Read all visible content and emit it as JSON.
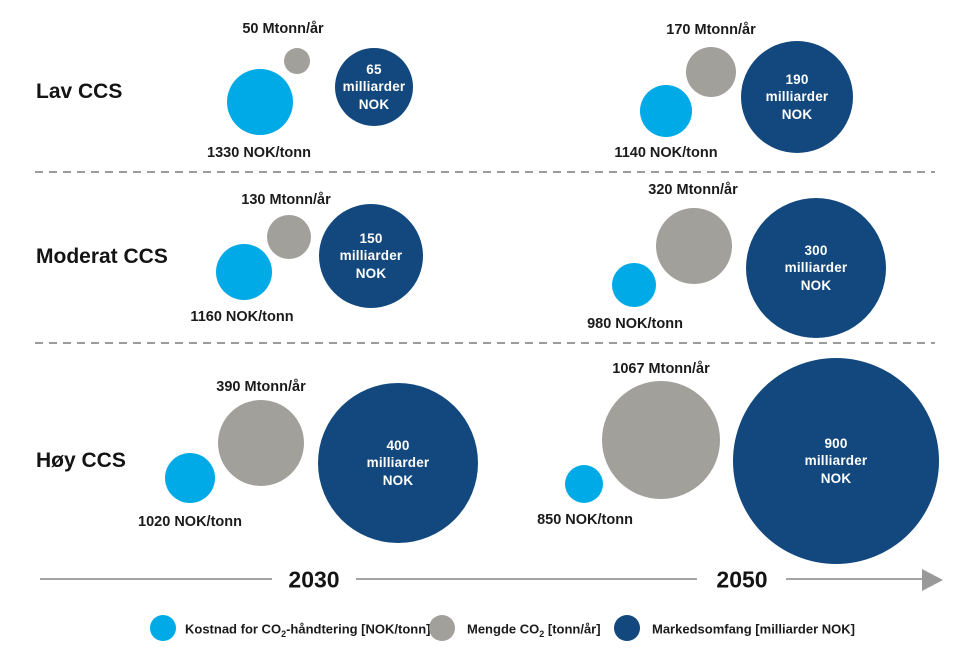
{
  "rows": [
    {
      "label": "Lav CCS"
    },
    {
      "label": "Moderat CCS"
    },
    {
      "label": "Høy CCS"
    }
  ],
  "groups": [
    {
      "scenario": "Lav CCS",
      "year": "2030",
      "amount": "50 Mtonn/år",
      "market": "65\nmilliarder\nNOK",
      "cost": "1330 NOK/tonn"
    },
    {
      "scenario": "Lav CCS",
      "year": "2050",
      "amount": "170 Mtonn/år",
      "market": "190\nmilliarder\nNOK",
      "cost": "1140 NOK/tonn"
    },
    {
      "scenario": "Moderat CCS",
      "year": "2030",
      "amount": "130 Mtonn/år",
      "market": "150\nmilliarder\nNOK",
      "cost": "1160 NOK/tonn"
    },
    {
      "scenario": "Moderat CCS",
      "year": "2050",
      "amount": "320 Mtonn/år",
      "market": "300\nmilliarder\nNOK",
      "cost": "980 NOK/tonn"
    },
    {
      "scenario": "Høy CCS",
      "year": "2030",
      "amount": "390 Mtonn/år",
      "market": "400\nmilliarder\nNOK",
      "cost": "1020 NOK/tonn"
    },
    {
      "scenario": "Høy CCS",
      "year": "2050",
      "amount": "1067 Mtonn/år",
      "market": "900\nmilliarder\nNOK",
      "cost": "850 NOK/tonn"
    }
  ],
  "timeline": {
    "left_year": "2030",
    "right_year": "2050"
  },
  "legend": [
    {
      "pre": "Kostnad for CO",
      "sub": "2",
      "post": "-håndtering [NOK/tonn]",
      "color": "#00aae6"
    },
    {
      "pre": "Mengde CO",
      "sub": "2",
      "post": " [tonn/år]",
      "color": "#a1a09b"
    },
    {
      "pre": "Markedsomfang [milliarder NOK]",
      "sub": "",
      "post": "",
      "color": "#12487d"
    }
  ],
  "colors": {
    "cost_bubble": "#00aae6",
    "amount_bubble": "#a1a09b",
    "market_bubble": "#12487d",
    "text": "#1b1b1b",
    "timeline": "#a5a5a5",
    "dashed_separator": "#9c9c9c"
  },
  "chart_data": {
    "type": "bubble",
    "title": "",
    "scenarios": [
      "Lav CCS",
      "Moderat CCS",
      "Høy CCS"
    ],
    "years": [
      2030,
      2050
    ],
    "series_meta": [
      {
        "name": "Kostnad for CO2-håndtering [NOK/tonn]",
        "color": "#00aae6"
      },
      {
        "name": "Mengde CO2 [tonn/år]",
        "color": "#a1a09b",
        "unit_shown": "Mtonn/år"
      },
      {
        "name": "Markedsomfang [milliarder NOK]",
        "color": "#12487d"
      }
    ],
    "records": [
      {
        "scenario": "Lav CCS",
        "year": 2030,
        "kostnad_nok_per_tonn": 1330,
        "mengde_mtonn_per_aar": 50,
        "markedsomfang_mrd_nok": 65
      },
      {
        "scenario": "Lav CCS",
        "year": 2050,
        "kostnad_nok_per_tonn": 1140,
        "mengde_mtonn_per_aar": 170,
        "markedsomfang_mrd_nok": 190
      },
      {
        "scenario": "Moderat CCS",
        "year": 2030,
        "kostnad_nok_per_tonn": 1160,
        "mengde_mtonn_per_aar": 130,
        "markedsomfang_mrd_nok": 150
      },
      {
        "scenario": "Moderat CCS",
        "year": 2050,
        "kostnad_nok_per_tonn": 980,
        "mengde_mtonn_per_aar": 320,
        "markedsomfang_mrd_nok": 300
      },
      {
        "scenario": "Høy CCS",
        "year": 2030,
        "kostnad_nok_per_tonn": 1020,
        "mengde_mtonn_per_aar": 390,
        "markedsomfang_mrd_nok": 400
      },
      {
        "scenario": "Høy CCS",
        "year": 2050,
        "kostnad_nok_per_tonn": 850,
        "mengde_mtonn_per_aar": 1067,
        "markedsomfang_mrd_nok": 900
      }
    ],
    "layout": {
      "legend_position": "bottom",
      "grid": false,
      "row_separators": "dashed",
      "x_axis": "timeline arrow 2030 → 2050"
    }
  }
}
